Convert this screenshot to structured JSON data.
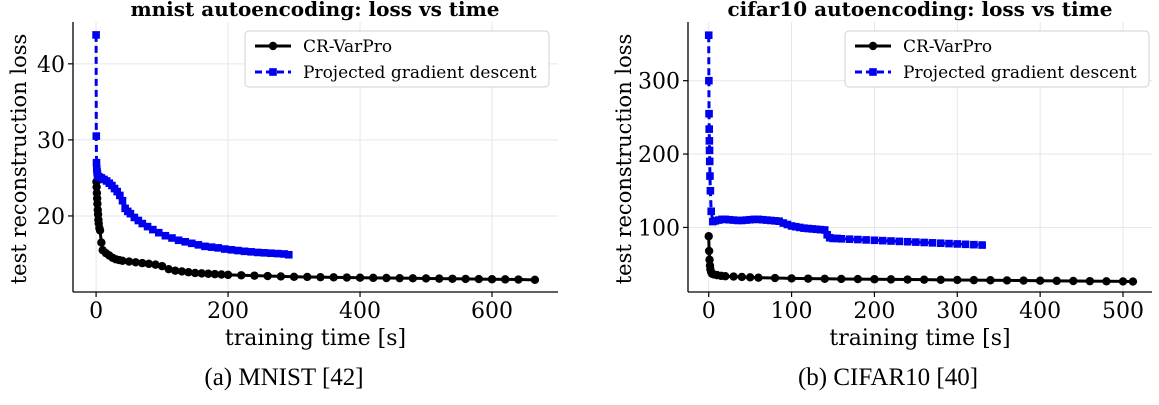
{
  "chart_data": [
    {
      "type": "line",
      "title": "mnist autoencoding: loss vs time",
      "xlabel": "training time [s]",
      "ylabel": "test reconstruction loss",
      "xlim": [
        -35,
        700
      ],
      "ylim": [
        10,
        45.5
      ],
      "xticks": [
        0,
        200,
        400,
        600
      ],
      "yticks": [
        20,
        30,
        40
      ],
      "grid": true,
      "legend_position": "top-right",
      "caption": "(a) MNIST [42]",
      "series": [
        {
          "name": "CR-VarPro",
          "color": "#000000",
          "marker": "circle",
          "x": [
            0.5,
            0.8,
            1.2,
            1.6,
            2,
            2.5,
            3,
            3.5,
            4,
            5,
            6,
            8,
            10,
            15,
            20,
            25,
            30,
            35,
            40,
            50,
            60,
            70,
            80,
            90,
            100,
            110,
            120,
            130,
            140,
            150,
            160,
            170,
            180,
            190,
            200,
            220,
            240,
            260,
            280,
            300,
            320,
            340,
            360,
            380,
            400,
            420,
            440,
            460,
            480,
            500,
            520,
            540,
            560,
            580,
            600,
            620,
            640,
            665
          ],
          "y": [
            24.5,
            23.8,
            23,
            22.3,
            21.6,
            20.8,
            20.2,
            19.5,
            19,
            18.4,
            18.1,
            16.5,
            15.5,
            15.1,
            14.8,
            14.5,
            14.3,
            14.2,
            14.1,
            14,
            13.9,
            13.8,
            13.7,
            13.6,
            13.4,
            13,
            12.8,
            12.7,
            12.6,
            12.5,
            12.45,
            12.4,
            12.35,
            12.3,
            12.25,
            12.2,
            12.15,
            12.1,
            12.05,
            12,
            11.98,
            11.95,
            11.93,
            11.9,
            11.88,
            11.86,
            11.84,
            11.82,
            11.8,
            11.78,
            11.76,
            11.74,
            11.72,
            11.7,
            11.68,
            11.66,
            11.64,
            11.6
          ]
        },
        {
          "name": "Projected gradient descent",
          "color": "#0000ee",
          "marker": "square",
          "x": [
            0,
            0.3,
            0.6,
            1,
            1.5,
            2,
            3,
            5,
            8,
            12,
            16,
            20,
            24,
            28,
            32,
            36,
            40,
            44,
            48,
            52,
            58,
            64,
            70,
            78,
            86,
            95,
            105,
            115,
            125,
            135,
            145,
            155,
            165,
            175,
            185,
            195,
            205,
            215,
            225,
            235,
            245,
            255,
            265,
            275,
            285,
            292
          ],
          "y": [
            43.8,
            30.5,
            27,
            26.2,
            25.8,
            25.5,
            25.2,
            25.1,
            25,
            24.8,
            24.6,
            24.3,
            24,
            23.6,
            23.2,
            22.7,
            22,
            21,
            20.6,
            20.3,
            19.8,
            19.4,
            19,
            18.6,
            18.2,
            17.8,
            17.4,
            17.1,
            16.8,
            16.6,
            16.4,
            16.2,
            16,
            15.9,
            15.8,
            15.65,
            15.55,
            15.45,
            15.35,
            15.28,
            15.2,
            15.15,
            15.1,
            15.05,
            15,
            14.9
          ]
        }
      ]
    },
    {
      "type": "line",
      "title": "cifar10 autoencoding: loss vs time",
      "xlabel": "training time [s]",
      "ylabel": "test reconstruction loss",
      "xlim": [
        -25,
        535
      ],
      "ylim": [
        12,
        380
      ],
      "xticks": [
        0,
        100,
        200,
        300,
        400,
        500
      ],
      "yticks": [
        100,
        200,
        300
      ],
      "grid": true,
      "legend_position": "top-right",
      "caption": "(b) CIFAR10 [40]",
      "series": [
        {
          "name": "CR-VarPro",
          "color": "#000000",
          "marker": "circle",
          "x": [
            0,
            0.5,
            1,
            1.5,
            2,
            3,
            4,
            6,
            10,
            15,
            20,
            30,
            40,
            50,
            60,
            80,
            100,
            120,
            140,
            160,
            180,
            200,
            220,
            240,
            260,
            280,
            300,
            320,
            340,
            360,
            380,
            400,
            420,
            440,
            460,
            480,
            500,
            512
          ],
          "y": [
            88,
            68,
            56,
            48,
            43,
            39,
            37,
            36,
            35,
            34,
            33.5,
            33,
            32.5,
            32,
            31.5,
            31,
            30.5,
            30.2,
            30,
            29.8,
            29.6,
            29.4,
            29.2,
            29,
            28.8,
            28.6,
            28.4,
            28.2,
            28,
            27.8,
            27.6,
            27.4,
            27.2,
            27,
            26.8,
            26.6,
            26.4,
            26.2
          ]
        },
        {
          "name": "Projected gradient descent",
          "color": "#0000ee",
          "marker": "square",
          "x": [
            0,
            0.2,
            0.4,
            0.6,
            0.8,
            1,
            1.2,
            1.5,
            2,
            3,
            5,
            8,
            12,
            16,
            20,
            25,
            30,
            35,
            40,
            45,
            50,
            55,
            60,
            65,
            70,
            75,
            80,
            85,
            90,
            95,
            100,
            105,
            110,
            115,
            120,
            125,
            130,
            135,
            140,
            143,
            146,
            150,
            155,
            160,
            170,
            180,
            190,
            200,
            210,
            220,
            230,
            240,
            250,
            260,
            270,
            280,
            290,
            300,
            310,
            320,
            330
          ],
          "y": [
            362,
            300,
            255,
            234,
            218,
            205,
            190,
            170,
            150,
            122,
            108,
            109,
            110,
            111,
            111,
            110.5,
            110,
            109.5,
            109.5,
            110,
            110.5,
            111,
            111,
            110.5,
            110,
            109.5,
            109,
            108.5,
            106,
            104,
            102,
            101,
            100,
            99,
            98.5,
            98,
            97.5,
            97,
            96.5,
            90,
            86,
            85,
            85,
            84.5,
            84,
            83.5,
            83,
            82.5,
            82,
            81.5,
            81,
            80.5,
            80,
            79.5,
            79,
            78.5,
            78,
            77.5,
            77,
            76.5,
            76
          ]
        }
      ]
    }
  ]
}
